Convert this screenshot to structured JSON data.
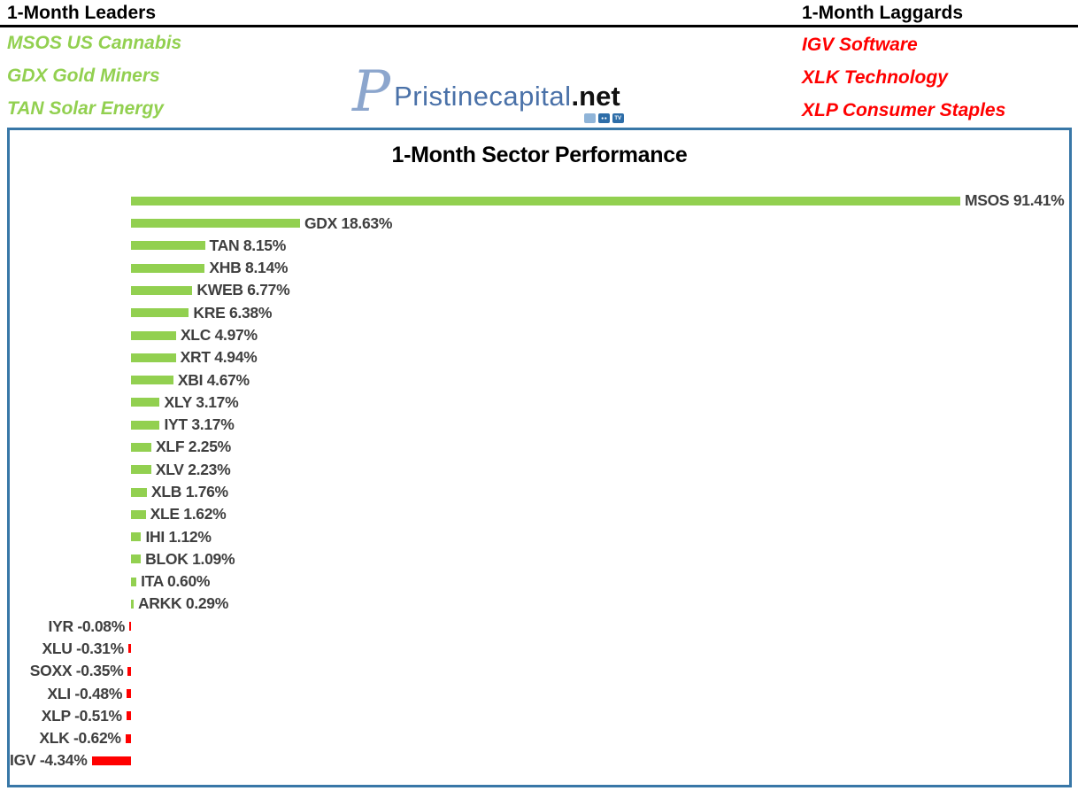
{
  "header": {
    "leaders": {
      "title": "1-Month Leaders",
      "items": [
        "MSOS US Cannabis",
        "GDX Gold Miners",
        "TAN Solar Energy"
      ]
    },
    "laggards": {
      "title": "1-Month Laggards",
      "items": [
        "IGV Software",
        "XLK Technology",
        "XLP Consumer Staples"
      ]
    },
    "logo": {
      "monogram": "P",
      "brand": "Pristinecapital",
      "tld": ".net",
      "icons": [
        "chat-icon",
        "discord-icon",
        "tv-icon"
      ]
    }
  },
  "colors": {
    "leader_green": "#92D050",
    "laggard_red": "#FF0000",
    "chart_border_blue": "#3877A7",
    "bar_label_gray": "#3F3F3F",
    "logo_blue": "#4A71A8"
  },
  "chart_data": {
    "type": "bar",
    "orientation": "horizontal",
    "title": "1-Month Sector Performance",
    "value_suffix": "%",
    "categories": [
      "MSOS",
      "GDX",
      "TAN",
      "XHB",
      "KWEB",
      "KRE",
      "XLC",
      "XRT",
      "XBI",
      "XLY",
      "IYT",
      "XLF",
      "XLV",
      "XLB",
      "XLE",
      "IHI",
      "BLOK",
      "ITA",
      "ARKK",
      "IYR",
      "XLU",
      "SOXX",
      "XLI",
      "XLP",
      "XLK",
      "IGV"
    ],
    "values": [
      91.41,
      18.63,
      8.15,
      8.14,
      6.77,
      6.38,
      4.97,
      4.94,
      4.67,
      3.17,
      3.17,
      2.25,
      2.23,
      1.76,
      1.62,
      1.12,
      1.09,
      0.6,
      0.29,
      -0.08,
      -0.31,
      -0.35,
      -0.48,
      -0.51,
      -0.62,
      -4.34
    ],
    "positive_color": "#92D050",
    "negative_color": "#FF0000",
    "xlim": [
      -5,
      92
    ],
    "grid": false,
    "legend": false,
    "axis_labels_visible": false
  }
}
